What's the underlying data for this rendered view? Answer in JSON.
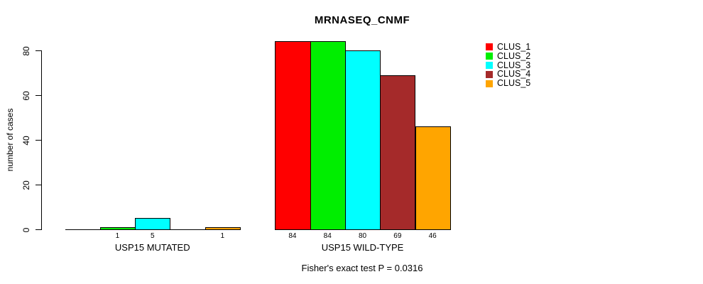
{
  "title": "MRNASEQ_CNMF",
  "footer": "Fisher's exact test P = 0.0316",
  "y_axis": {
    "label": "number of cases",
    "ticks": [
      0,
      20,
      40,
      60,
      80
    ]
  },
  "chart_data": {
    "type": "bar",
    "title": "MRNASEQ_CNMF",
    "ylabel": "number of cases",
    "xlabel": "",
    "categories": [
      "USP15 MUTATED",
      "USP15 WILD-TYPE"
    ],
    "series": [
      {
        "name": "CLUS_1",
        "color": "#ff0000",
        "values": [
          0,
          84
        ]
      },
      {
        "name": "CLUS_2",
        "color": "#00ee00",
        "values": [
          1,
          84
        ]
      },
      {
        "name": "CLUS_3",
        "color": "#00ffff",
        "values": [
          5,
          80
        ]
      },
      {
        "name": "CLUS_4",
        "color": "#a52a2a",
        "values": [
          0,
          69
        ]
      },
      {
        "name": "CLUS_5",
        "color": "#ffa500",
        "values": [
          1,
          46
        ]
      }
    ],
    "ylim": [
      0,
      80
    ],
    "yticks": [
      0,
      20,
      40,
      60,
      80
    ],
    "grid": false,
    "legend_position": "top-right",
    "bar_labels": "value printed under each bar when value > 0",
    "annotation": "Fisher's exact test P = 0.0316"
  }
}
